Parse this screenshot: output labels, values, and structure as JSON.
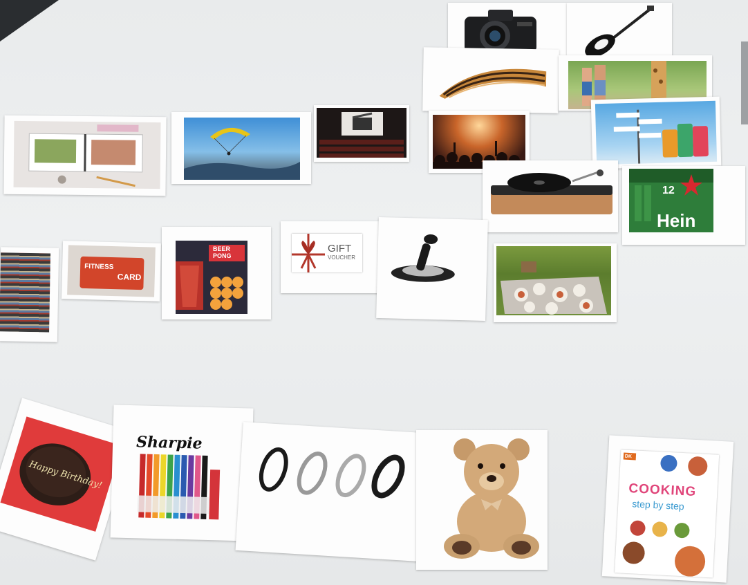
{
  "cards": {
    "gift_voucher": {
      "line1": "GIFT",
      "line2": "VOUCHER"
    },
    "fitness_card": {
      "line1": "FITNESS",
      "line2": "CARD"
    },
    "beer_pong": {
      "line1": "BEER",
      "line2": "PONG"
    },
    "birthday_cake": {
      "text": "Happy Birthday!"
    },
    "sharpie": {
      "brand": "Sharpie"
    },
    "cooking_book": {
      "publisher": "DK",
      "title_line1": "COOKING",
      "title_line2": "step by step"
    },
    "beer_case": {
      "count": "12",
      "brand": "Hein"
    }
  },
  "colors": {
    "table": "#eceeef",
    "card": "#fdfdfd",
    "voucher_ribbon": "#b3372b",
    "fitness_red": "#d2452a",
    "beer_green": "#2e7d3a",
    "cake_background": "#e03b3b"
  }
}
